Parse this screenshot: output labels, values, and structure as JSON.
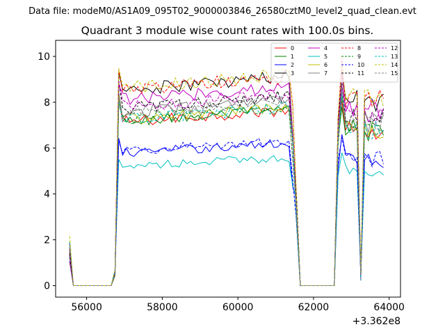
{
  "header_text": "Data file: modeM0/AS1A09_095T02_9000003846_26580cztM0_level2_quad_clean.evt",
  "chart_data": {
    "type": "line",
    "title": "Quadrant 3 module wise count rates with 100.0s bins.",
    "xlabel": "",
    "ylabel": "",
    "x_offset_label": "+3.362e8",
    "xlim": [
      55180,
      64300
    ],
    "ylim": [
      -0.5,
      10.7
    ],
    "x_ticks": [
      56000,
      58000,
      60000,
      62000,
      64000
    ],
    "x_tick_labels": [
      "56000",
      "58000",
      "60000",
      "62000",
      "64000"
    ],
    "y_ticks": [
      0,
      2,
      4,
      6,
      8,
      10
    ],
    "y_tick_labels": [
      "0",
      "2",
      "4",
      "6",
      "8",
      "10"
    ],
    "gti_segments": [
      {
        "start": 55550,
        "end": 55650,
        "kind": "spike"
      },
      {
        "start": 55750,
        "end": 56650,
        "kind": "zero"
      },
      {
        "start": 56750,
        "end": 61450,
        "kind": "on"
      },
      {
        "start": 61550,
        "end": 62550,
        "kind": "zero"
      },
      {
        "start": 62650,
        "end": 63150,
        "kind": "on"
      },
      {
        "start": 63250,
        "end": 63250,
        "kind": "dip"
      },
      {
        "start": 63350,
        "end": 63850,
        "kind": "on"
      }
    ],
    "series": [
      {
        "name": "0",
        "color": "#ff0000",
        "dash": "solid",
        "level": 7.4
      },
      {
        "name": "1",
        "color": "#008000",
        "dash": "solid",
        "level": 7.4
      },
      {
        "name": "2",
        "color": "#0000ff",
        "dash": "solid",
        "level": 6.0
      },
      {
        "name": "3",
        "color": "#000000",
        "dash": "solid",
        "level": 8.8
      },
      {
        "name": "4",
        "color": "#bf00bf",
        "dash": "solid",
        "level": 8.4
      },
      {
        "name": "5",
        "color": "#00bfbf",
        "dash": "solid",
        "level": 5.4
      },
      {
        "name": "6",
        "color": "#bfbf00",
        "dash": "solid",
        "level": 7.5
      },
      {
        "name": "7",
        "color": "#808080",
        "dash": "solid",
        "level": 7.8
      },
      {
        "name": "8",
        "color": "#ff0000",
        "dash": "dashed",
        "level": 8.8
      },
      {
        "name": "9",
        "color": "#008000",
        "dash": "dashed",
        "level": 7.5
      },
      {
        "name": "10",
        "color": "#0000ff",
        "dash": "dashed",
        "level": 6.1
      },
      {
        "name": "11",
        "color": "#000000",
        "dash": "dashed",
        "level": 8.0
      },
      {
        "name": "12",
        "color": "#bf00bf",
        "dash": "dashed",
        "level": 8.1
      },
      {
        "name": "13",
        "color": "#00bfbf",
        "dash": "dashed",
        "level": 7.5
      },
      {
        "name": "14",
        "color": "#bfbf00",
        "dash": "dashed",
        "level": 8.9
      },
      {
        "name": "15",
        "color": "#808080",
        "dash": "dashed",
        "level": 7.8
      }
    ]
  }
}
